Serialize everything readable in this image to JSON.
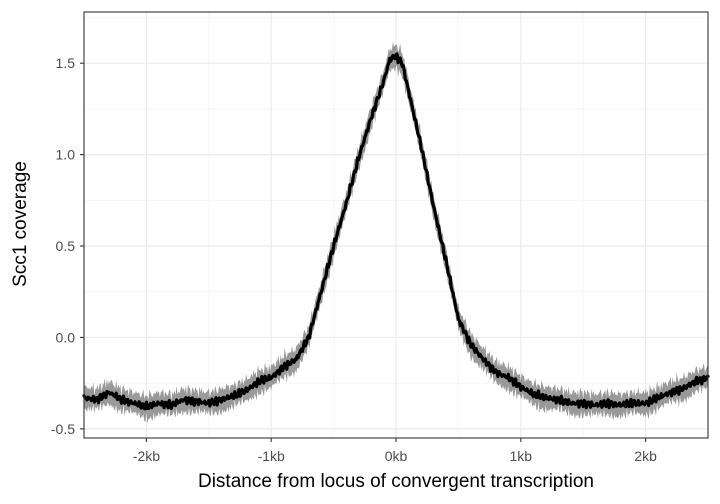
{
  "chart_data": {
    "type": "line",
    "title": "",
    "xlabel": "Distance from locus of convergent transcription",
    "ylabel": "Scc1 coverage",
    "xlim": [
      -2.5,
      2.5
    ],
    "ylim": [
      -0.55,
      1.78
    ],
    "x_ticks": [
      {
        "value": -2,
        "label": "-2kb"
      },
      {
        "value": -1,
        "label": "-1kb"
      },
      {
        "value": 0,
        "label": "0kb"
      },
      {
        "value": 1,
        "label": "1kb"
      },
      {
        "value": 2,
        "label": "2kb"
      }
    ],
    "y_ticks": [
      {
        "value": -0.5,
        "label": "-0.5"
      },
      {
        "value": 0.0,
        "label": "0.0"
      },
      {
        "value": 0.5,
        "label": "0.5"
      },
      {
        "value": 1.0,
        "label": "1.0"
      },
      {
        "value": 1.5,
        "label": "1.5"
      }
    ],
    "grid": true,
    "legend": "none",
    "series": [
      {
        "line_color": "#000000",
        "band_color": "#999999",
        "band_halfwidth": 0.06,
        "x": [
          -2.5,
          -2.4,
          -2.3,
          -2.2,
          -2.1,
          -2.0,
          -1.9,
          -1.8,
          -1.7,
          -1.6,
          -1.5,
          -1.4,
          -1.3,
          -1.2,
          -1.1,
          -1.0,
          -0.9,
          -0.8,
          -0.7,
          -0.6,
          -0.5,
          -0.4,
          -0.3,
          -0.2,
          -0.1,
          -0.05,
          0.0,
          0.05,
          0.1,
          0.2,
          0.3,
          0.4,
          0.5,
          0.6,
          0.7,
          0.8,
          0.9,
          1.0,
          1.1,
          1.2,
          1.3,
          1.4,
          1.5,
          1.6,
          1.7,
          1.8,
          1.9,
          2.0,
          2.1,
          2.2,
          2.3,
          2.4,
          2.5
        ],
        "y": [
          -0.33,
          -0.34,
          -0.3,
          -0.34,
          -0.36,
          -0.38,
          -0.36,
          -0.37,
          -0.34,
          -0.35,
          -0.36,
          -0.34,
          -0.32,
          -0.29,
          -0.24,
          -0.22,
          -0.16,
          -0.12,
          0.0,
          0.25,
          0.5,
          0.73,
          0.98,
          1.2,
          1.4,
          1.52,
          1.54,
          1.5,
          1.35,
          1.05,
          0.72,
          0.42,
          0.1,
          -0.04,
          -0.12,
          -0.19,
          -0.22,
          -0.27,
          -0.31,
          -0.33,
          -0.34,
          -0.36,
          -0.36,
          -0.37,
          -0.36,
          -0.37,
          -0.36,
          -0.36,
          -0.33,
          -0.3,
          -0.28,
          -0.24,
          -0.22
        ]
      }
    ]
  }
}
